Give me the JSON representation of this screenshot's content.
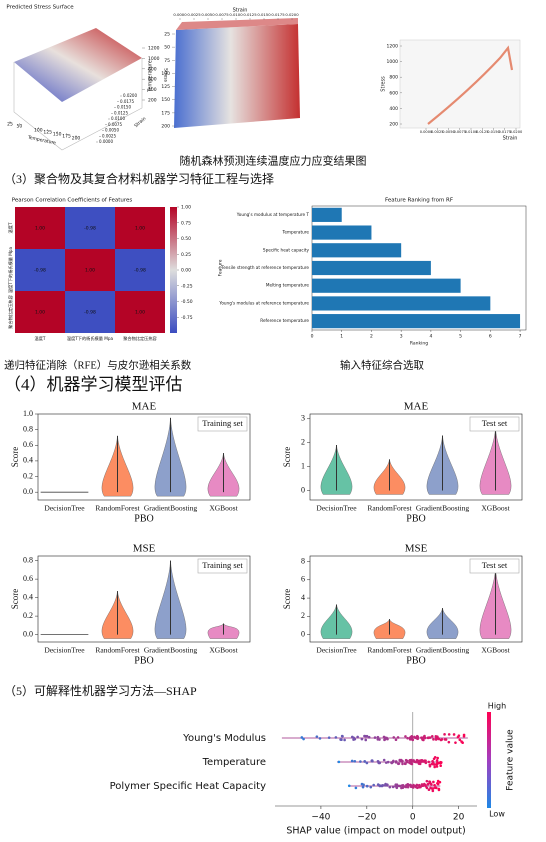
{
  "top_figures": {
    "surface": {
      "title": "Predicted Stress Surface",
      "z_label": "Stress",
      "x_label": "Temperature",
      "y_label": "Strain",
      "zticks": [
        200,
        400,
        600,
        800,
        1000,
        1200
      ],
      "xticks": [
        25,
        50,
        100,
        125,
        150,
        175,
        200
      ],
      "strain_ticks": [
        {
          "value": 0,
          "label": "0.0000"
        },
        0.0025,
        {
          "value": 0.005,
          "label": "0.0050"
        },
        0.0075,
        {
          "value": 0.01,
          "label": "0.0100"
        },
        0.0125,
        {
          "value": 0.015,
          "label": "0.0150"
        },
        0.0175,
        {
          "value": 0.02,
          "label": "0.0200"
        }
      ]
    },
    "heatmap": {
      "x_label": "Strain",
      "y_label": "Temperature",
      "yticks": [
        25,
        50,
        75,
        100,
        125,
        150,
        175,
        200
      ],
      "strain_ticks": [
        {
          "value": 0,
          "label": "0.0000"
        },
        0.0025,
        {
          "value": 0.005,
          "label": "0.0050"
        },
        0.0075,
        {
          "value": 0.01,
          "label": "0.0100"
        },
        0.0125,
        {
          "value": 0.015,
          "label": "0.0150"
        },
        0.0175,
        {
          "value": 0.02,
          "label": "0.0200"
        }
      ]
    },
    "curve": {
      "x_label": "Strain",
      "y_label": "Stress",
      "yticks": [
        200,
        400,
        600,
        800,
        1000,
        1200
      ],
      "strain_ticks": [
        {
          "value": 0,
          "label": "0.0000"
        },
        0.0025,
        {
          "value": 0.005,
          "label": "0.0050"
        },
        0.0075,
        {
          "value": 0.01,
          "label": "0.0100"
        },
        0.0125,
        {
          "value": 0.015,
          "label": "0.0150"
        },
        0.0175,
        {
          "value": 0.02,
          "label": "0.0200"
        }
      ]
    },
    "caption": "随机森林预测连续温度应力应变结果图"
  },
  "section3": {
    "heading": "（3）聚合物及其复合材料机器学习特征工程与选择",
    "correlation": {
      "title": "Pearson Correlation Coefficients of Features",
      "labels": [
        "温度T",
        "温度T下的杨氏模量 Mpa",
        "聚合物比定压热容"
      ],
      "matrix": [
        [
          1.0,
          -0.98,
          1.0
        ],
        [
          -0.98,
          1.0,
          -0.98
        ],
        [
          1.0,
          -0.98,
          1.0
        ]
      ],
      "value_labels": [
        [
          "1.00",
          "-0.98",
          "1.00"
        ],
        [
          "-0.98",
          "1.00",
          "-0.98"
        ],
        [
          "1.00",
          "-0.98",
          "1.00"
        ]
      ],
      "colorbar_ticks": [
        {
          "value": 1,
          "label": "1.00"
        },
        0.75,
        {
          "value": 0.5,
          "label": "0.50"
        },
        0.25,
        {
          "value": 0,
          "label": "0.00"
        },
        -0.25,
        {
          "value": -0.5,
          "label": "-0.50"
        },
        -0.75
      ],
      "caption": "递归特征消除（RFE）与皮尔逊相关系数"
    },
    "ranking": {
      "type": "bar",
      "title": "Feature Ranking from RF",
      "x_label": "Ranking",
      "y_label": "Feature",
      "categories": [
        "Young's modulus at temperature T",
        "Temperature",
        "Specific heat capacity",
        "Tensile strength at reference temperature",
        "Melting temperature",
        "Young's modulus at reference temperature",
        "Reference temperature"
      ],
      "values": [
        1,
        2,
        3,
        4,
        5,
        6,
        7
      ],
      "color": "#1f77b4",
      "xlim": [
        0,
        7.2
      ],
      "xticks": [
        0,
        1,
        2,
        3,
        4,
        5,
        6,
        7
      ],
      "caption": "输入特征综合选取"
    }
  },
  "section4": {
    "heading": "（4）机器学习模型评估",
    "categories": [
      "DecisionTree",
      "RandomForest",
      "GradientBoosting",
      "XGBoost"
    ],
    "colors": [
      "#66c2a5",
      "#fc8d62",
      "#8da0cb",
      "#e78ac3"
    ],
    "x_label": "PBO",
    "y_label": "Score",
    "panels": [
      {
        "type": "violin",
        "title": "MAE",
        "legend": "Training set",
        "ylim": [
          -0.1,
          1.0
        ],
        "yticks": [
          {
            "value": 0,
            "label": "0.0"
          },
          0.2,
          0.4,
          0.6,
          0.8,
          {
            "value": 1,
            "label": "1.0"
          }
        ],
        "values": [
          0,
          0.72,
          0.95,
          0.5
        ]
      },
      {
        "type": "violin",
        "title": "MAE",
        "legend": "Test set",
        "ylim": [
          -0.4,
          3.2
        ],
        "yticks": [
          0,
          1,
          2,
          3
        ],
        "values": [
          1.9,
          1.3,
          2.3,
          2.6
        ]
      },
      {
        "type": "violin",
        "title": "MSE",
        "legend": "Training set",
        "ylim": [
          -0.08,
          0.85
        ],
        "yticks": [
          {
            "value": 0,
            "label": "0.0"
          },
          0.2,
          0.4,
          0.6,
          0.8
        ],
        "values": [
          0,
          0.47,
          0.8,
          0.12
        ]
      },
      {
        "type": "violin",
        "title": "MSE",
        "legend": "Test set",
        "ylim": [
          -0.8,
          8.6
        ],
        "yticks": [
          0,
          2,
          4,
          6,
          8
        ],
        "values": [
          3.3,
          1.7,
          2.9,
          7.2
        ]
      }
    ]
  },
  "section5": {
    "heading": "（5）可解释性机器学习方法—SHAP",
    "shap": {
      "type": "beeswarm",
      "features": [
        "Young's Modulus",
        "Temperature",
        "Polymer Specific Heat Capacity"
      ],
      "min": [
        -57,
        -33,
        -28
      ],
      "max": [
        24,
        13,
        12
      ],
      "xlim": [
        -60,
        28
      ],
      "xticks": [
        {
          "value": -40,
          "label": "−40"
        },
        {
          "value": -20,
          "label": "−20"
        },
        0,
        20
      ],
      "x_label": "SHAP value (impact on model output)",
      "colorbar_high": "High",
      "colorbar_low": "Low",
      "colorbar_label": "Feature value"
    }
  }
}
